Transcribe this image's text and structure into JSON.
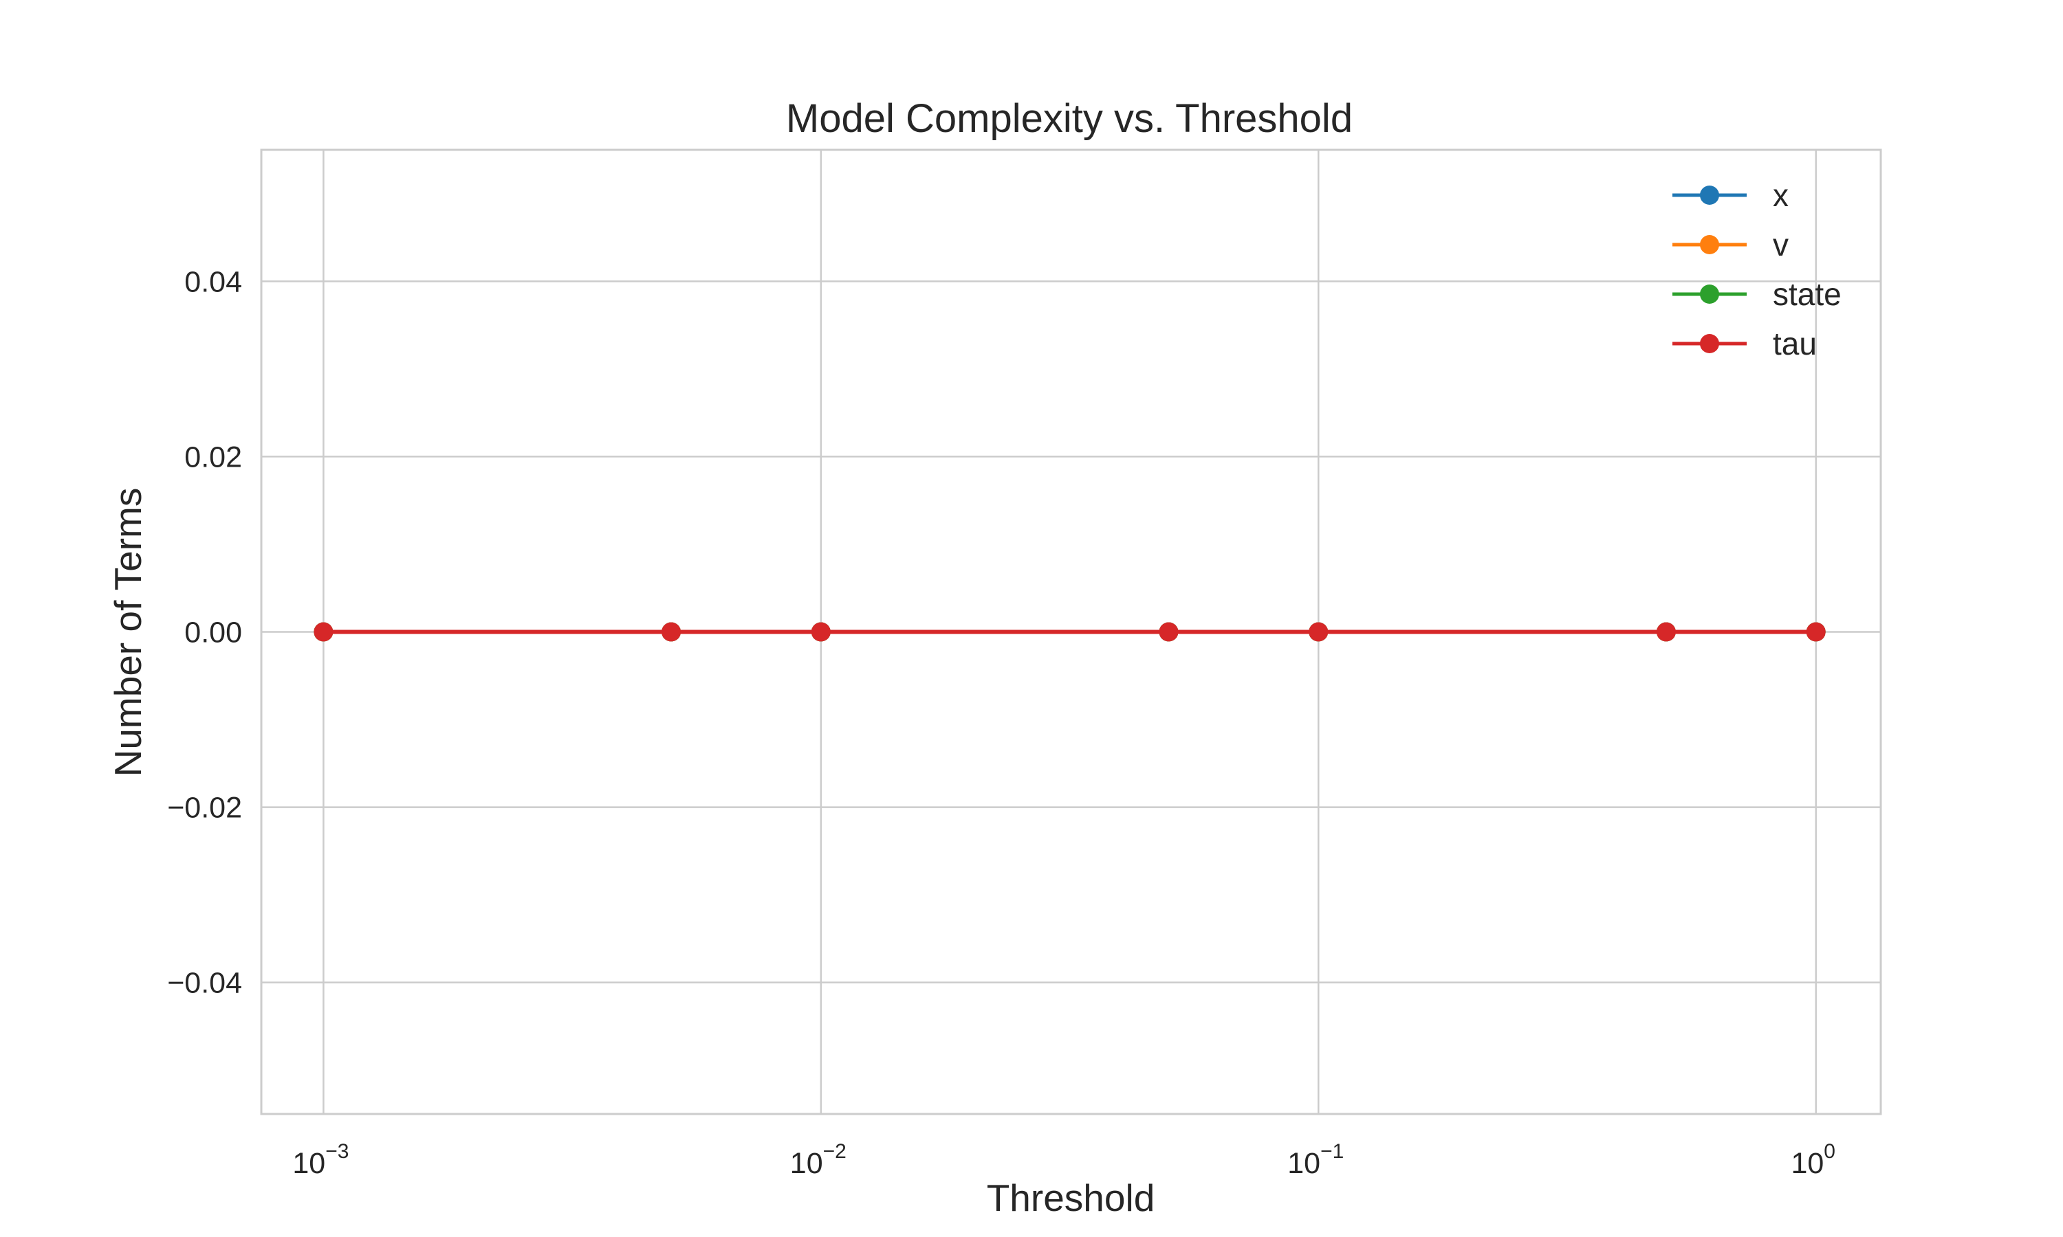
{
  "chart_data": {
    "type": "line",
    "title": "Model Complexity vs. Threshold",
    "xlabel": "Threshold",
    "ylabel": "Number of Terms",
    "xscale": "log",
    "xlim": [
      0.00075,
      1.35
    ],
    "ylim": [
      -0.055,
      0.055
    ],
    "x_ticks": [
      {
        "base": "10",
        "exp": "−3",
        "value": 0.001
      },
      {
        "base": "10",
        "exp": "−2",
        "value": 0.01
      },
      {
        "base": "10",
        "exp": "−1",
        "value": 0.1
      },
      {
        "base": "10",
        "exp": "0",
        "value": 1
      }
    ],
    "y_ticks": [
      {
        "label": "−0.04",
        "value": -0.04
      },
      {
        "label": "−0.02",
        "value": -0.02
      },
      {
        "label": "0.00",
        "value": 0.0
      },
      {
        "label": "0.02",
        "value": 0.02
      },
      {
        "label": "0.04",
        "value": 0.04
      }
    ],
    "grid": true,
    "legend_position": "top-right",
    "x": [
      0.001,
      0.005,
      0.01,
      0.05,
      0.1,
      0.5,
      1.0
    ],
    "series": [
      {
        "name": "x",
        "color": "#1f77b4",
        "values": [
          0,
          0,
          0,
          0,
          0,
          0,
          0
        ]
      },
      {
        "name": "v",
        "color": "#ff7f0e",
        "values": [
          0,
          0,
          0,
          0,
          0,
          0,
          0
        ]
      },
      {
        "name": "state",
        "color": "#2ca02c",
        "values": [
          0,
          0,
          0,
          0,
          0,
          0,
          0
        ]
      },
      {
        "name": "tau",
        "color": "#d62728",
        "values": [
          0,
          0,
          0,
          0,
          0,
          0,
          0
        ]
      }
    ]
  }
}
